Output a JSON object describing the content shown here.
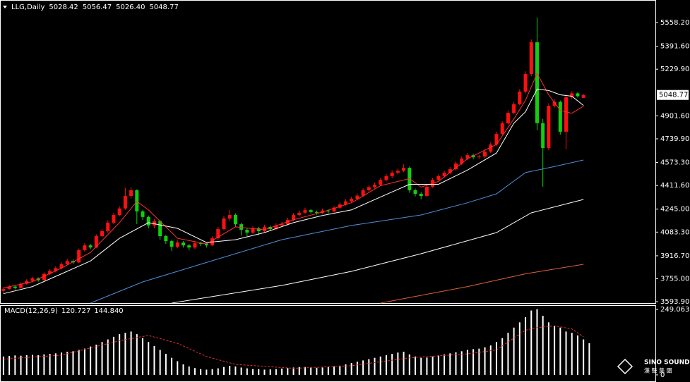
{
  "chart_data": [
    {
      "type": "candlestick",
      "title": "LLG,Daily",
      "title_values": [
        "5028.42",
        "5056.47",
        "5026.40",
        "5048.77"
      ],
      "up_color": "#ff1010",
      "down_color": "#10d010",
      "xlim": [
        -0.6,
        112.4
      ],
      "ylim": [
        3584,
        5717
      ],
      "yticks": [
        {
          "value": 5558.2,
          "label": "5558.20"
        },
        {
          "value": 5391.6,
          "label": "5391.60"
        },
        {
          "value": 5229.9,
          "label": "5229.90"
        },
        {
          "value": 4901.6,
          "label": "4901.60"
        },
        {
          "value": 4739.9,
          "label": "4739.90"
        },
        {
          "value": 4573.3,
          "label": "4573.30"
        },
        {
          "value": 4411.6,
          "label": "4411.60"
        },
        {
          "value": 4245,
          "label": "4245.00"
        },
        {
          "value": 4083.3,
          "label": "4083.30"
        },
        {
          "value": 3916.7,
          "label": "3916.70"
        },
        {
          "value": 3755,
          "label": "3755.00"
        },
        {
          "value": 3593.9,
          "label": "3593.90"
        }
      ],
      "ohlc": [
        [
          3670,
          3695,
          3655,
          3683
        ],
        [
          3683,
          3712,
          3675,
          3700
        ],
        [
          3700,
          3708,
          3680,
          3690
        ],
        [
          3690,
          3730,
          3685,
          3720
        ],
        [
          3720,
          3752,
          3712,
          3740
        ],
        [
          3740,
          3770,
          3730,
          3758
        ],
        [
          3758,
          3765,
          3735,
          3745
        ],
        [
          3745,
          3800,
          3740,
          3790
        ],
        [
          3790,
          3822,
          3782,
          3810
        ],
        [
          3810,
          3842,
          3800,
          3830
        ],
        [
          3830,
          3870,
          3822,
          3857
        ],
        [
          3857,
          3895,
          3850,
          3880
        ],
        [
          3880,
          3890,
          3860,
          3870
        ],
        [
          3870,
          3968,
          3865,
          3956
        ],
        [
          3956,
          4005,
          3945,
          3990
        ],
        [
          3990,
          4000,
          3962,
          3975
        ],
        [
          3975,
          4068,
          3970,
          4055
        ],
        [
          4055,
          4105,
          4045,
          4090
        ],
        [
          4090,
          4165,
          4080,
          4150
        ],
        [
          4150,
          4220,
          4140,
          4204
        ],
        [
          4204,
          4265,
          4195,
          4250
        ],
        [
          4250,
          4395,
          4240,
          4338
        ],
        [
          4338,
          4400,
          4320,
          4378
        ],
        [
          4378,
          4385,
          4140,
          4229
        ],
        [
          4229,
          4240,
          4170,
          4190
        ],
        [
          4190,
          4200,
          4110,
          4130
        ],
        [
          4130,
          4175,
          4110,
          4160
        ],
        [
          4160,
          4170,
          4030,
          4055
        ],
        [
          4055,
          4065,
          4000,
          4020
        ],
        [
          4020,
          4030,
          3950,
          3980
        ],
        [
          3980,
          4025,
          3970,
          4010
        ],
        [
          4010,
          4020,
          3975,
          3990
        ],
        [
          3990,
          4000,
          3955,
          3975
        ],
        [
          3975,
          4020,
          3965,
          4005
        ],
        [
          4005,
          4015,
          3985,
          4000
        ],
        [
          4000,
          4008,
          3975,
          3990
        ],
        [
          3990,
          4055,
          3985,
          4040
        ],
        [
          4040,
          4120,
          4030,
          4105
        ],
        [
          4105,
          4195,
          4095,
          4179
        ],
        [
          4179,
          4240,
          4165,
          4204
        ],
        [
          4204,
          4215,
          4120,
          4139
        ],
        [
          4139,
          4150,
          4060,
          4100
        ],
        [
          4100,
          4112,
          4050,
          4080
        ],
        [
          4080,
          4125,
          4070,
          4110
        ],
        [
          4110,
          4120,
          4060,
          4090
        ],
        [
          4090,
          4135,
          4080,
          4120
        ],
        [
          4120,
          4130,
          4090,
          4105
        ],
        [
          4105,
          4145,
          4095,
          4130
        ],
        [
          4130,
          4155,
          4120,
          4139
        ],
        [
          4139,
          4185,
          4130,
          4170
        ],
        [
          4170,
          4218,
          4160,
          4204
        ],
        [
          4204,
          4235,
          4195,
          4220
        ],
        [
          4220,
          4255,
          4210,
          4238
        ],
        [
          4238,
          4245,
          4215,
          4225
        ],
        [
          4225,
          4235,
          4205,
          4219
        ],
        [
          4219,
          4250,
          4210,
          4235
        ],
        [
          4235,
          4242,
          4215,
          4229
        ],
        [
          4229,
          4268,
          4220,
          4255
        ],
        [
          4255,
          4292,
          4245,
          4278
        ],
        [
          4278,
          4315,
          4270,
          4300
        ],
        [
          4300,
          4332,
          4290,
          4318
        ],
        [
          4318,
          4355,
          4308,
          4340
        ],
        [
          4340,
          4392,
          4330,
          4378
        ],
        [
          4378,
          4415,
          4368,
          4400
        ],
        [
          4400,
          4432,
          4390,
          4417
        ],
        [
          4417,
          4465,
          4408,
          4450
        ],
        [
          4450,
          4492,
          4440,
          4477
        ],
        [
          4477,
          4518,
          4465,
          4502
        ],
        [
          4502,
          4530,
          4490,
          4515
        ],
        [
          4515,
          4560,
          4505,
          4536
        ],
        [
          4536,
          4545,
          4360,
          4378
        ],
        [
          4378,
          4390,
          4335,
          4353
        ],
        [
          4353,
          4365,
          4315,
          4338
        ],
        [
          4338,
          4418,
          4330,
          4403
        ],
        [
          4403,
          4465,
          4395,
          4452
        ],
        [
          4452,
          4490,
          4440,
          4477
        ],
        [
          4477,
          4515,
          4465,
          4502
        ],
        [
          4502,
          4540,
          4490,
          4526
        ],
        [
          4526,
          4580,
          4515,
          4566
        ],
        [
          4566,
          4615,
          4555,
          4601
        ],
        [
          4601,
          4640,
          4590,
          4625
        ],
        [
          4625,
          4635,
          4598,
          4610
        ],
        [
          4610,
          4628,
          4600,
          4615
        ],
        [
          4615,
          4665,
          4605,
          4650
        ],
        [
          4650,
          4715,
          4640,
          4700
        ],
        [
          4700,
          4790,
          4690,
          4774
        ],
        [
          4774,
          4865,
          4765,
          4849
        ],
        [
          4849,
          4940,
          4840,
          4923
        ],
        [
          4923,
          5000,
          4915,
          4983
        ],
        [
          4983,
          5090,
          4975,
          5072
        ],
        [
          5072,
          5215,
          5060,
          5196
        ],
        [
          5196,
          5440,
          5180,
          5420
        ],
        [
          5420,
          5593,
          4800,
          4850
        ],
        [
          4850,
          4880,
          4402,
          4675
        ],
        [
          4675,
          4990,
          4660,
          4973
        ],
        [
          4973,
          5020,
          4960,
          5000
        ],
        [
          5000,
          5010,
          4770,
          4790
        ],
        [
          4790,
          5050,
          4665,
          5032
        ],
        [
          5032,
          5075,
          5020,
          5060
        ],
        [
          5060,
          5068,
          5030,
          5040
        ],
        [
          5028.42,
          5056.47,
          5026.4,
          5048.77
        ]
      ],
      "lines": [
        {
          "color": "#ff3030",
          "x": [
            0,
            5,
            10,
            15,
            20,
            23,
            25,
            30,
            35,
            40,
            45,
            50,
            55,
            60,
            65,
            70,
            72,
            75,
            80,
            85,
            88,
            90,
            92,
            94,
            96,
            98,
            100
          ],
          "values": [
            3690,
            3735,
            3830,
            3940,
            4150,
            4300,
            4240,
            4040,
            4000,
            4120,
            4100,
            4170,
            4225,
            4290,
            4410,
            4460,
            4400,
            4440,
            4600,
            4700,
            4880,
            5010,
            5200,
            5050,
            4940,
            4920,
            4970
          ]
        },
        {
          "color": "#ffffff",
          "x": [
            0,
            5,
            10,
            15,
            20,
            25,
            30,
            35,
            40,
            45,
            50,
            55,
            60,
            65,
            70,
            75,
            80,
            85,
            88,
            90,
            92,
            94,
            96,
            98,
            100
          ],
          "values": [
            3650,
            3700,
            3790,
            3880,
            4040,
            4150,
            4110,
            4010,
            4030,
            4080,
            4150,
            4200,
            4240,
            4330,
            4420,
            4420,
            4520,
            4640,
            4850,
            4930,
            5090,
            5080,
            5050,
            5040,
            4975
          ]
        },
        {
          "color": "#4f8fd8",
          "x": [
            15,
            24,
            36,
            48,
            60,
            72,
            80,
            85,
            90,
            95,
            100
          ],
          "values": [
            3584,
            3733,
            3882,
            4030,
            4130,
            4204,
            4290,
            4353,
            4502,
            4545,
            4591
          ]
        },
        {
          "color": "#ffffff",
          "x": [
            29,
            48,
            60,
            72,
            85,
            91,
            100
          ],
          "values": [
            3584,
            3708,
            3807,
            3931,
            4080,
            4219,
            4313
          ]
        },
        {
          "color": "#e0603a",
          "x": [
            65,
            80,
            90,
            100
          ],
          "values": [
            3584,
            3700,
            3790,
            3857
          ]
        }
      ]
    },
    {
      "type": "bar",
      "title": "MACD(12,26,9)",
      "readout": [
        "120.727",
        "144.840"
      ],
      "color": "#ffffff",
      "xlim": [
        -0.6,
        112.4
      ],
      "ylim": [
        -24.4,
        265.3
      ],
      "yticks": [
        249.063,
        0
      ],
      "values": [
        70,
        72,
        74,
        73,
        75,
        76,
        75,
        78,
        80,
        82,
        85,
        88,
        90,
        95,
        100,
        108,
        115,
        125,
        135,
        145,
        155,
        160,
        165,
        155,
        140,
        125,
        110,
        95,
        80,
        65,
        52,
        40,
        32,
        26,
        22,
        20,
        22,
        25,
        30,
        34,
        32,
        28,
        25,
        22,
        22,
        20,
        21,
        22,
        24,
        26,
        28,
        30,
        30,
        28,
        27,
        28,
        30,
        32,
        35,
        40,
        45,
        50,
        55,
        60,
        65,
        70,
        75,
        80,
        85,
        88,
        78,
        70,
        65,
        66,
        70,
        74,
        78,
        82,
        86,
        90,
        95,
        98,
        100,
        105,
        112,
        125,
        140,
        160,
        180,
        200,
        220,
        245,
        250,
        225,
        200,
        185,
        180,
        165,
        160,
        150,
        135,
        120.727
      ],
      "signal": {
        "color": "#e03030",
        "x": [
          0,
          10,
          20,
          25,
          30,
          35,
          40,
          50,
          60,
          70,
          80,
          85,
          90,
          92,
          95,
          98,
          100
        ],
        "values": [
          60,
          75,
          130,
          150,
          120,
          70,
          40,
          25,
          35,
          65,
          80,
          95,
          170,
          180,
          187,
          175,
          144.84
        ]
      }
    }
  ],
  "logo": {
    "name": "SINO SOUND",
    "sub": "漢 聲 集 團"
  }
}
